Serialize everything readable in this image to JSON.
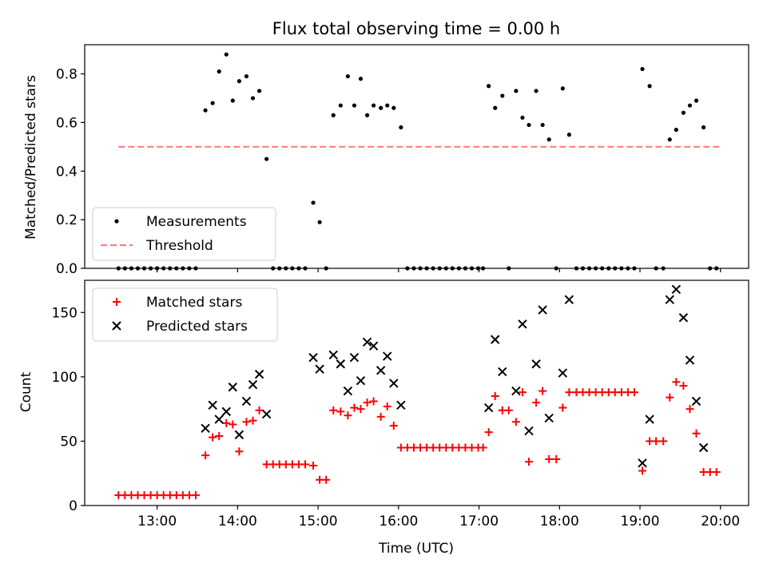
{
  "chart_data": [
    {
      "type": "scatter",
      "title": "Flux total observing time = 0.00 h",
      "ylabel": "Matched/Predicted stars",
      "xlabel": "",
      "x_unit": "hours UTC",
      "xlim": [
        12.1,
        20.35
      ],
      "ylim": [
        0,
        0.92
      ],
      "yticks": [
        0,
        0.2,
        0.4,
        0.6,
        0.8
      ],
      "ytick_labels": [
        "0.0",
        "0.2",
        "0.4",
        "0.6",
        "0.8"
      ],
      "xticks": [
        13,
        14,
        15,
        16,
        17,
        18,
        19,
        20
      ],
      "xtick_labels": [],
      "grid": false,
      "legend_position": "lower-left",
      "legend": [
        {
          "label": "Measurements",
          "marker": "dot",
          "color": "#000000"
        },
        {
          "label": "Threshold",
          "marker": "dashed-line",
          "color": "#ff7f7f"
        }
      ],
      "series": [
        {
          "name": "Measurements",
          "marker": "dot",
          "color": "#000000",
          "points": [
            [
              12.52,
              0
            ],
            [
              12.6,
              0
            ],
            [
              12.68,
              0
            ],
            [
              12.76,
              0
            ],
            [
              12.84,
              0
            ],
            [
              12.92,
              0
            ],
            [
              13.0,
              0
            ],
            [
              13.08,
              0
            ],
            [
              13.16,
              0
            ],
            [
              13.24,
              0
            ],
            [
              13.32,
              0
            ],
            [
              13.4,
              0
            ],
            [
              13.48,
              0
            ],
            [
              13.6,
              0.65
            ],
            [
              13.69,
              0.68
            ],
            [
              13.77,
              0.81
            ],
            [
              13.86,
              0.88
            ],
            [
              13.94,
              0.69
            ],
            [
              14.02,
              0.77
            ],
            [
              14.11,
              0.79
            ],
            [
              14.19,
              0.7
            ],
            [
              14.27,
              0.73
            ],
            [
              14.36,
              0.45
            ],
            [
              14.44,
              0
            ],
            [
              14.52,
              0
            ],
            [
              14.6,
              0
            ],
            [
              14.68,
              0
            ],
            [
              14.76,
              0
            ],
            [
              14.84,
              0
            ],
            [
              14.94,
              0.27
            ],
            [
              15.02,
              0.19
            ],
            [
              15.1,
              0
            ],
            [
              15.19,
              0.63
            ],
            [
              15.28,
              0.67
            ],
            [
              15.37,
              0.79
            ],
            [
              15.45,
              0.67
            ],
            [
              15.53,
              0.78
            ],
            [
              15.61,
              0.63
            ],
            [
              15.69,
              0.67
            ],
            [
              15.78,
              0.66
            ],
            [
              15.86,
              0.67
            ],
            [
              15.94,
              0.66
            ],
            [
              16.03,
              0.58
            ],
            [
              16.11,
              0
            ],
            [
              16.19,
              0
            ],
            [
              16.27,
              0
            ],
            [
              16.35,
              0
            ],
            [
              16.43,
              0
            ],
            [
              16.51,
              0
            ],
            [
              16.59,
              0
            ],
            [
              16.67,
              0
            ],
            [
              16.75,
              0
            ],
            [
              16.83,
              0
            ],
            [
              16.91,
              0
            ],
            [
              16.99,
              0
            ],
            [
              17.05,
              0
            ],
            [
              17.12,
              0.75
            ],
            [
              17.2,
              0.66
            ],
            [
              17.29,
              0.71
            ],
            [
              17.37,
              0
            ],
            [
              17.46,
              0.73
            ],
            [
              17.54,
              0.62
            ],
            [
              17.62,
              0.59
            ],
            [
              17.71,
              0.73
            ],
            [
              17.79,
              0.59
            ],
            [
              17.87,
              0.53
            ],
            [
              17.96,
              0
            ],
            [
              18.04,
              0.74
            ],
            [
              18.12,
              0.55
            ],
            [
              18.21,
              0
            ],
            [
              18.29,
              0
            ],
            [
              18.37,
              0
            ],
            [
              18.45,
              0
            ],
            [
              18.53,
              0
            ],
            [
              18.61,
              0
            ],
            [
              18.69,
              0
            ],
            [
              18.77,
              0
            ],
            [
              18.85,
              0
            ],
            [
              18.93,
              0
            ],
            [
              19.03,
              0.82
            ],
            [
              19.12,
              0.75
            ],
            [
              19.2,
              0
            ],
            [
              19.29,
              0
            ],
            [
              19.37,
              0.53
            ],
            [
              19.45,
              0.57
            ],
            [
              19.54,
              0.64
            ],
            [
              19.62,
              0.67
            ],
            [
              19.7,
              0.69
            ],
            [
              19.79,
              0.58
            ],
            [
              19.87,
              0
            ],
            [
              19.95,
              0
            ]
          ]
        },
        {
          "name": "Threshold",
          "marker": "dashed-line",
          "color": "#ff7f7f",
          "points": [
            [
              12.52,
              0.5
            ],
            [
              20.0,
              0.5
            ]
          ]
        }
      ]
    },
    {
      "type": "scatter",
      "title": "",
      "ylabel": "Count",
      "xlabel": "Time (UTC)",
      "x_unit": "hours UTC",
      "xlim": [
        12.1,
        20.35
      ],
      "ylim": [
        0,
        175
      ],
      "yticks": [
        0,
        50,
        100,
        150
      ],
      "ytick_labels": [
        "0",
        "50",
        "100",
        "150"
      ],
      "xticks": [
        13,
        14,
        15,
        16,
        17,
        18,
        19,
        20
      ],
      "xtick_labels": [
        "13:00",
        "14:00",
        "15:00",
        "16:00",
        "17:00",
        "18:00",
        "19:00",
        "20:00"
      ],
      "grid": false,
      "legend_position": "upper-left",
      "legend": [
        {
          "label": "Matched stars",
          "marker": "plus",
          "color": "#ff0000"
        },
        {
          "label": "Predicted stars",
          "marker": "x",
          "color": "#000000"
        }
      ],
      "series": [
        {
          "name": "Matched stars",
          "marker": "plus",
          "color": "#ff0000",
          "points": [
            [
              12.52,
              8
            ],
            [
              12.6,
              8
            ],
            [
              12.68,
              8
            ],
            [
              12.76,
              8
            ],
            [
              12.84,
              8
            ],
            [
              12.92,
              8
            ],
            [
              13.0,
              8
            ],
            [
              13.08,
              8
            ],
            [
              13.16,
              8
            ],
            [
              13.24,
              8
            ],
            [
              13.32,
              8
            ],
            [
              13.4,
              8
            ],
            [
              13.48,
              8
            ],
            [
              13.6,
              39
            ],
            [
              13.69,
              53
            ],
            [
              13.77,
              54
            ],
            [
              13.86,
              64
            ],
            [
              13.94,
              63
            ],
            [
              14.02,
              42
            ],
            [
              14.11,
              65
            ],
            [
              14.19,
              66
            ],
            [
              14.27,
              74
            ],
            [
              14.36,
              32
            ],
            [
              14.44,
              32
            ],
            [
              14.52,
              32
            ],
            [
              14.6,
              32
            ],
            [
              14.68,
              32
            ],
            [
              14.76,
              32
            ],
            [
              14.84,
              32
            ],
            [
              14.94,
              31
            ],
            [
              15.02,
              20
            ],
            [
              15.1,
              20
            ],
            [
              15.19,
              74
            ],
            [
              15.28,
              73
            ],
            [
              15.37,
              70
            ],
            [
              15.45,
              76
            ],
            [
              15.53,
              75
            ],
            [
              15.61,
              80
            ],
            [
              15.69,
              81
            ],
            [
              15.78,
              69
            ],
            [
              15.86,
              77
            ],
            [
              15.94,
              62
            ],
            [
              16.03,
              45
            ],
            [
              16.11,
              45
            ],
            [
              16.19,
              45
            ],
            [
              16.27,
              45
            ],
            [
              16.35,
              45
            ],
            [
              16.43,
              45
            ],
            [
              16.51,
              45
            ],
            [
              16.59,
              45
            ],
            [
              16.67,
              45
            ],
            [
              16.75,
              45
            ],
            [
              16.83,
              45
            ],
            [
              16.91,
              45
            ],
            [
              16.99,
              45
            ],
            [
              17.05,
              45
            ],
            [
              17.12,
              57
            ],
            [
              17.2,
              85
            ],
            [
              17.29,
              74
            ],
            [
              17.37,
              74
            ],
            [
              17.46,
              65
            ],
            [
              17.54,
              88
            ],
            [
              17.62,
              34
            ],
            [
              17.71,
              80
            ],
            [
              17.79,
              89
            ],
            [
              17.87,
              36
            ],
            [
              17.96,
              36
            ],
            [
              18.04,
              76
            ],
            [
              18.12,
              88
            ],
            [
              18.21,
              88
            ],
            [
              18.29,
              88
            ],
            [
              18.37,
              88
            ],
            [
              18.45,
              88
            ],
            [
              18.53,
              88
            ],
            [
              18.61,
              88
            ],
            [
              18.69,
              88
            ],
            [
              18.77,
              88
            ],
            [
              18.85,
              88
            ],
            [
              18.93,
              88
            ],
            [
              19.03,
              27
            ],
            [
              19.12,
              50
            ],
            [
              19.2,
              50
            ],
            [
              19.29,
              50
            ],
            [
              19.37,
              84
            ],
            [
              19.45,
              96
            ],
            [
              19.54,
              93
            ],
            [
              19.62,
              75
            ],
            [
              19.7,
              56
            ],
            [
              19.79,
              26
            ],
            [
              19.87,
              26
            ],
            [
              19.95,
              26
            ]
          ]
        },
        {
          "name": "Predicted stars",
          "marker": "x",
          "color": "#000000",
          "points": [
            [
              13.6,
              60
            ],
            [
              13.69,
              78
            ],
            [
              13.77,
              67
            ],
            [
              13.86,
              73
            ],
            [
              13.94,
              92
            ],
            [
              14.02,
              55
            ],
            [
              14.11,
              81
            ],
            [
              14.19,
              94
            ],
            [
              14.27,
              102
            ],
            [
              14.36,
              71
            ],
            [
              14.94,
              115
            ],
            [
              15.02,
              106
            ],
            [
              15.19,
              117
            ],
            [
              15.28,
              110
            ],
            [
              15.37,
              89
            ],
            [
              15.45,
              115
            ],
            [
              15.53,
              97
            ],
            [
              15.61,
              127
            ],
            [
              15.69,
              124
            ],
            [
              15.78,
              105
            ],
            [
              15.86,
              116
            ],
            [
              15.94,
              95
            ],
            [
              16.03,
              78
            ],
            [
              17.12,
              76
            ],
            [
              17.2,
              129
            ],
            [
              17.29,
              104
            ],
            [
              17.46,
              89
            ],
            [
              17.54,
              141
            ],
            [
              17.62,
              58
            ],
            [
              17.71,
              110
            ],
            [
              17.79,
              152
            ],
            [
              17.87,
              68
            ],
            [
              18.04,
              103
            ],
            [
              18.12,
              160
            ],
            [
              19.03,
              33
            ],
            [
              19.12,
              67
            ],
            [
              19.37,
              160
            ],
            [
              19.45,
              168
            ],
            [
              19.54,
              146
            ],
            [
              19.62,
              113
            ],
            [
              19.7,
              81
            ],
            [
              19.79,
              45
            ]
          ]
        }
      ]
    }
  ]
}
